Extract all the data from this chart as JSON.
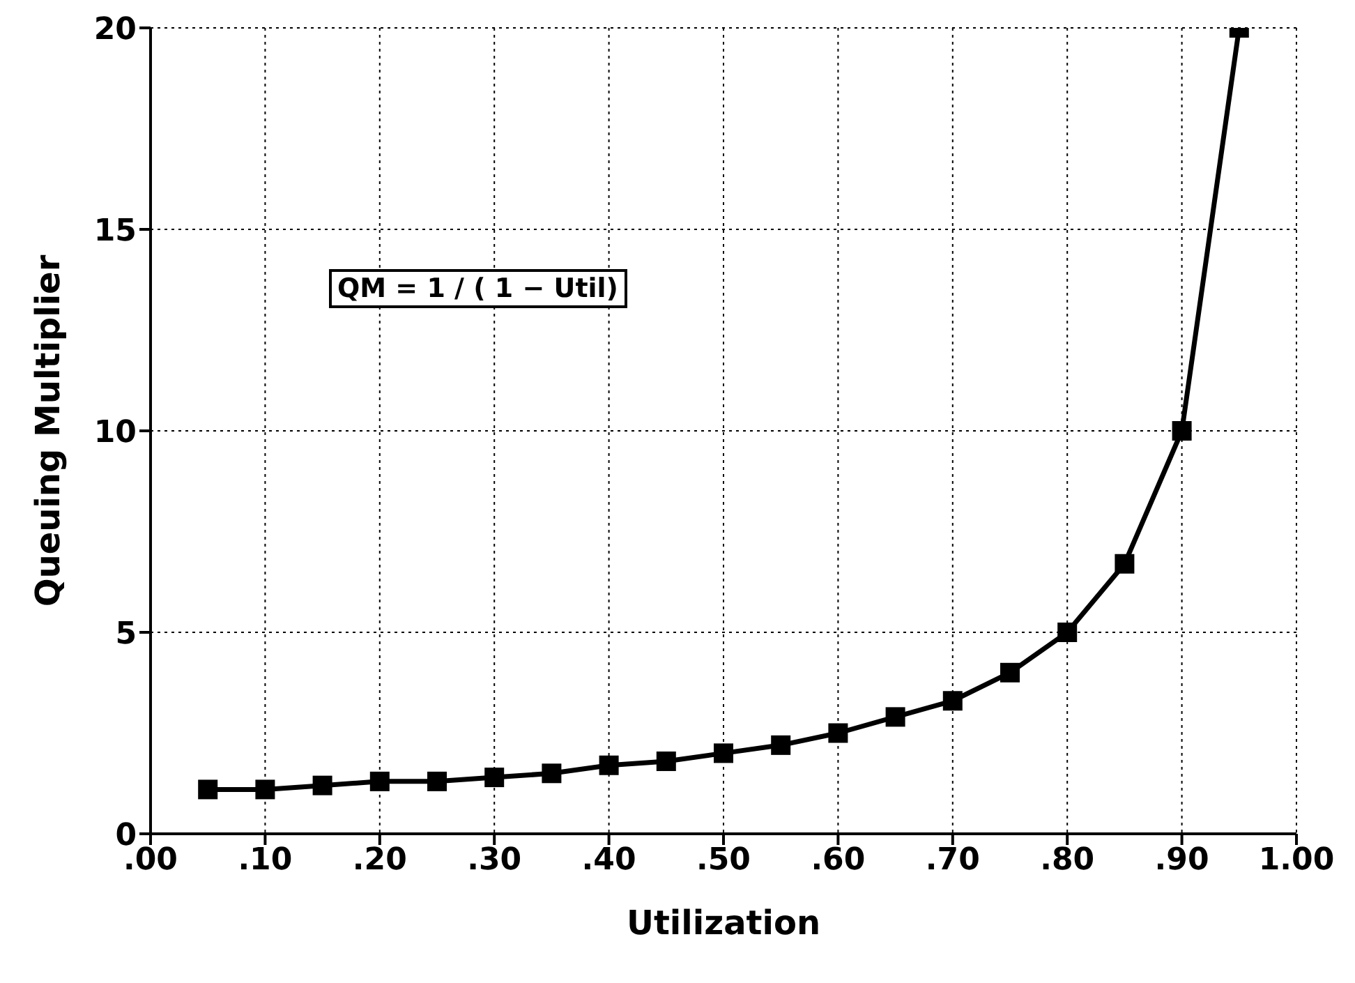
{
  "chart_data": {
    "type": "line",
    "xlabel": "Utilization",
    "ylabel": "Queuing Multiplier",
    "x": [
      0.05,
      0.1,
      0.15,
      0.2,
      0.25,
      0.3,
      0.35,
      0.4,
      0.45,
      0.5,
      0.55,
      0.6,
      0.65,
      0.7,
      0.75,
      0.8,
      0.85,
      0.9,
      0.95
    ],
    "series": [
      {
        "color": "#000000",
        "values": [
          1.1,
          1.1,
          1.2,
          1.3,
          1.3,
          1.4,
          1.5,
          1.7,
          1.8,
          2,
          2.2,
          2.5,
          2.9,
          3.3,
          4,
          5,
          6.7,
          10,
          20
        ]
      }
    ],
    "xlim": [
      0,
      1
    ],
    "xticks": [
      {
        "value": 0,
        "label": ".00"
      },
      {
        "value": 0.1,
        "label": ".10"
      },
      {
        "value": 0.2,
        "label": ".20"
      },
      {
        "value": 0.3,
        "label": ".30"
      },
      {
        "value": 0.4,
        "label": ".40"
      },
      {
        "value": 0.5,
        "label": ".50"
      },
      {
        "value": 0.6,
        "label": ".60"
      },
      {
        "value": 0.7,
        "label": ".70"
      },
      {
        "value": 0.8,
        "label": ".80"
      },
      {
        "value": 0.9,
        "label": ".90"
      },
      {
        "value": 1,
        "label": "1.00"
      }
    ],
    "ylim": [
      0,
      20
    ],
    "yticks": [
      0,
      5,
      10,
      15,
      20
    ],
    "annotations": [
      "QM = 1 / ( 1 − Util)"
    ],
    "grid": true,
    "marker": "square",
    "line_style": "solid"
  }
}
